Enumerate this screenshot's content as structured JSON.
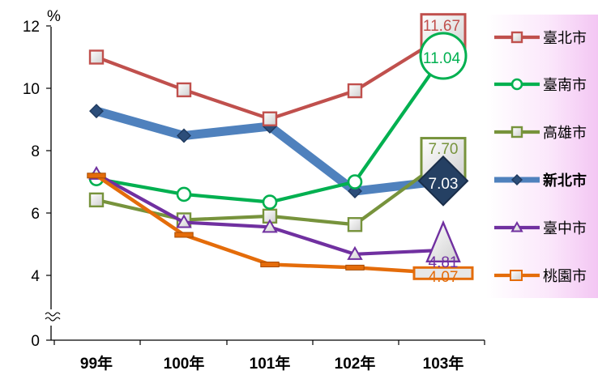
{
  "chart_data": {
    "type": "line",
    "ylabel": "%",
    "categories": [
      "99年",
      "100年",
      "101年",
      "102年",
      "103年"
    ],
    "y_ticks": [
      "0",
      "4",
      "6",
      "8",
      "10",
      "12"
    ],
    "ylim": [
      0,
      12
    ],
    "axis_break": "between 0 and 4",
    "legend_position": "right",
    "series": [
      {
        "name": "臺北市",
        "color": "#c0504d",
        "marker": "square",
        "values": [
          11.0,
          9.95,
          9.02,
          9.92,
          11.67
        ],
        "end_label": "11.67"
      },
      {
        "name": "臺南市",
        "color": "#00b050",
        "marker": "circle",
        "values": [
          7.1,
          6.6,
          6.35,
          7.0,
          11.04
        ],
        "end_label": "11.04"
      },
      {
        "name": "高雄市",
        "color": "#77933c",
        "marker": "square",
        "values": [
          6.42,
          5.78,
          5.9,
          5.63,
          7.7
        ],
        "end_label": "7.70"
      },
      {
        "name": "新北市",
        "color": "#4f81bd",
        "marker": "diamond",
        "values": [
          9.27,
          8.48,
          8.78,
          6.7,
          7.03
        ],
        "end_label": "7.03"
      },
      {
        "name": "臺中市",
        "color": "#7030a0",
        "marker": "triangle",
        "values": [
          7.25,
          5.7,
          5.55,
          4.68,
          4.81
        ],
        "end_label": "4.81"
      },
      {
        "name": "桃園市",
        "color": "#e46c0a",
        "marker": "bar",
        "values": [
          7.2,
          5.3,
          4.35,
          4.25,
          4.07
        ],
        "end_label": "4.07"
      }
    ]
  }
}
